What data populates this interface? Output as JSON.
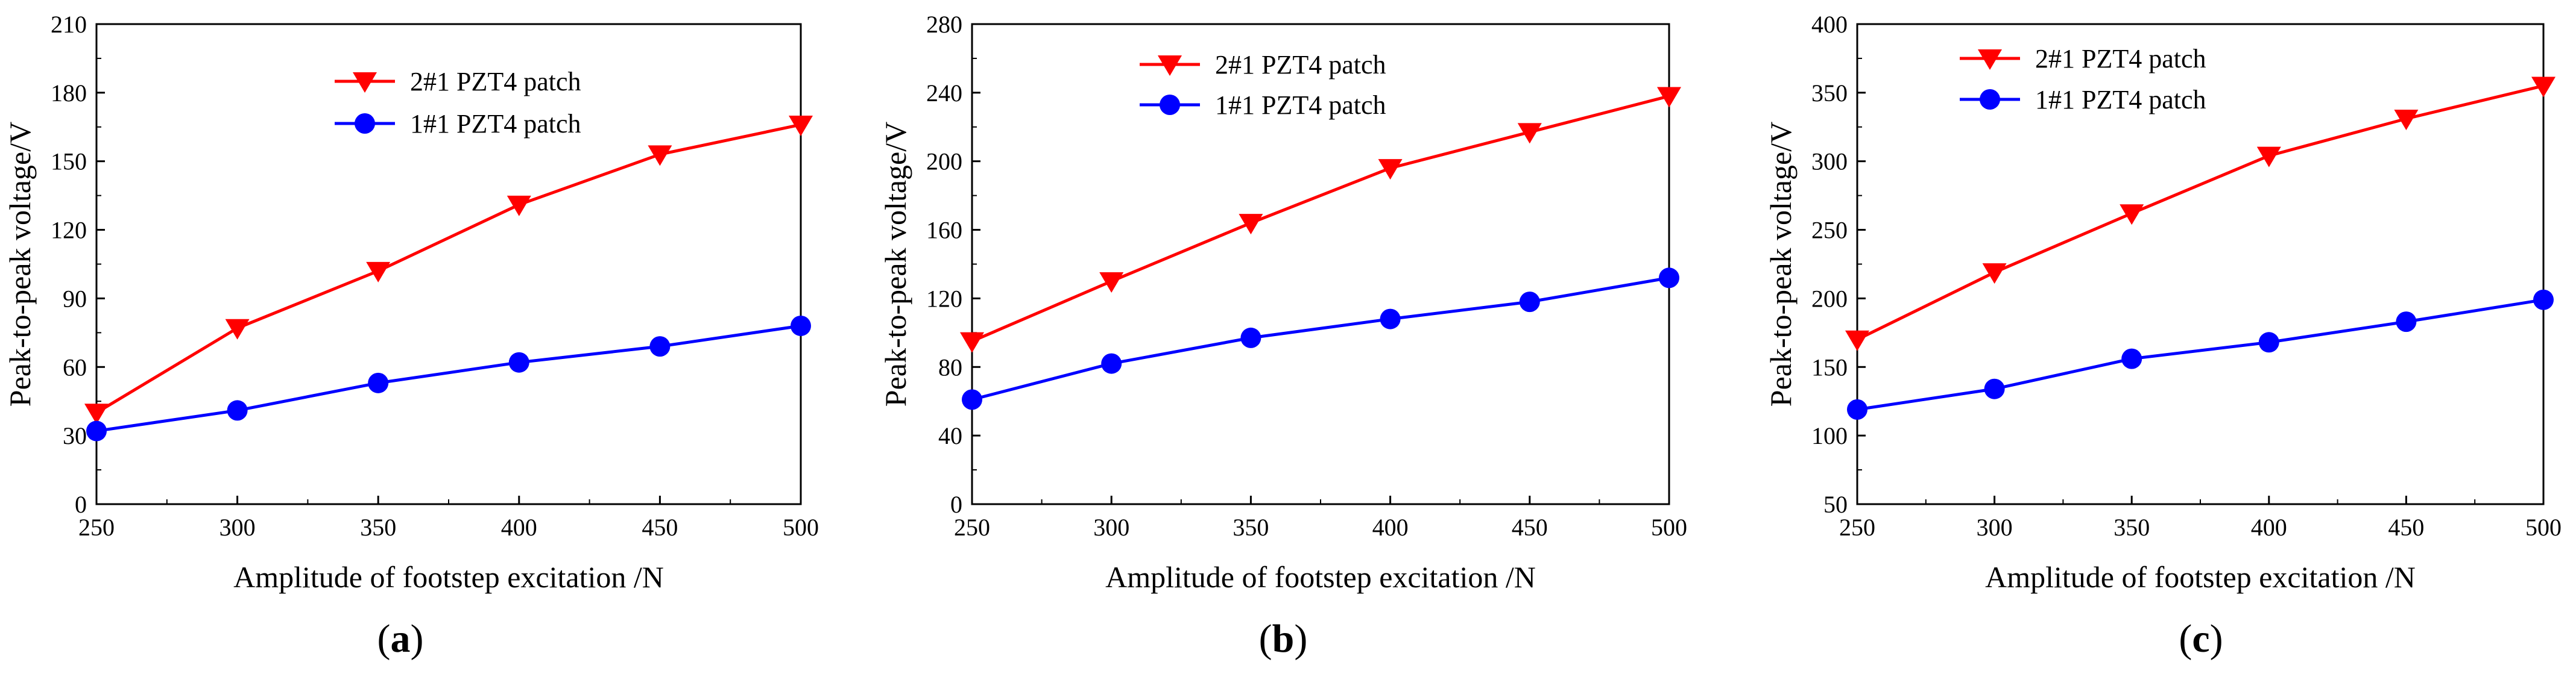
{
  "colors": {
    "series_red": "#ff0000",
    "series_blue": "#0000ff",
    "axis": "#000000"
  },
  "chart_data": [
    {
      "type": "line",
      "panel_label": "a",
      "xlabel": "Amplitude of footstep excitation /N",
      "ylabel": "Peak-to-peak voltage/V",
      "x": [
        250,
        300,
        350,
        400,
        450,
        500
      ],
      "xlim": [
        250,
        500
      ],
      "ylim": [
        0,
        210
      ],
      "xticks": [
        250,
        300,
        350,
        400,
        450,
        500
      ],
      "yticks": [
        0,
        30,
        60,
        90,
        120,
        150,
        180,
        210
      ],
      "legend": "upper-center",
      "series": [
        {
          "name": "2#1 PZT4 patch",
          "color": "#ff0000",
          "marker": "triangle-down",
          "values": [
            40,
            77,
            102,
            131,
            153,
            166
          ]
        },
        {
          "name": "1#1 PZT4 patch",
          "color": "#0000ff",
          "marker": "circle",
          "values": [
            32,
            41,
            53,
            62,
            69,
            78
          ]
        }
      ]
    },
    {
      "type": "line",
      "panel_label": "b",
      "xlabel": "Amplitude of footstep excitation /N",
      "ylabel": "Peak-to-peak voltage/V",
      "x": [
        250,
        300,
        350,
        400,
        450,
        500
      ],
      "xlim": [
        250,
        500
      ],
      "ylim": [
        0,
        280
      ],
      "xticks": [
        250,
        300,
        350,
        400,
        450,
        500
      ],
      "yticks": [
        0,
        40,
        80,
        120,
        160,
        200,
        240,
        280
      ],
      "legend": "upper-center",
      "series": [
        {
          "name": "2#1 PZT4 patch",
          "color": "#ff0000",
          "marker": "triangle-down",
          "values": [
            95,
            130,
            164,
            196,
            217,
            238
          ]
        },
        {
          "name": "1#1 PZT4 patch",
          "color": "#0000ff",
          "marker": "circle",
          "values": [
            61,
            82,
            97,
            108,
            118,
            132
          ]
        }
      ]
    },
    {
      "type": "line",
      "panel_label": "c",
      "xlabel": "Amplitude of footstep excitation /N",
      "ylabel": "Peak-to-peak voltage/V",
      "x": [
        250,
        300,
        350,
        400,
        450,
        500
      ],
      "xlim": [
        250,
        500
      ],
      "ylim": [
        50,
        400
      ],
      "xticks": [
        250,
        300,
        350,
        400,
        450,
        500
      ],
      "yticks": [
        50,
        100,
        150,
        200,
        250,
        300,
        350,
        400
      ],
      "legend": "upper-left",
      "series": [
        {
          "name": "2#1 PZT4 patch",
          "color": "#ff0000",
          "marker": "triangle-down",
          "values": [
            170,
            219,
            262,
            304,
            331,
            355
          ]
        },
        {
          "name": "1#1 PZT4 patch",
          "color": "#0000ff",
          "marker": "circle",
          "values": [
            119,
            134,
            156,
            168,
            183,
            199
          ]
        }
      ]
    }
  ]
}
